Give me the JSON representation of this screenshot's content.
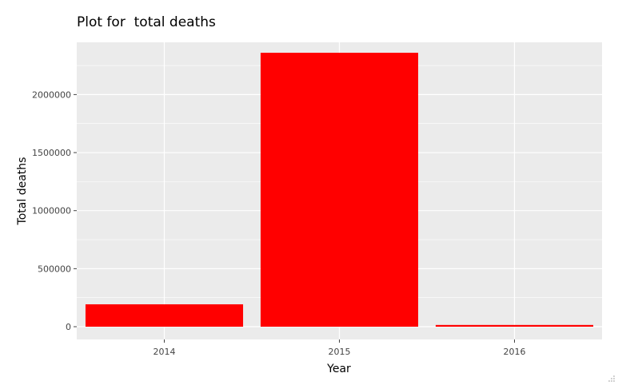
{
  "chart_data": {
    "type": "bar",
    "title": "Plot for  total deaths",
    "xlabel": "Year",
    "ylabel": "Total deaths",
    "categories": [
      "2014",
      "2015",
      "2016"
    ],
    "values": [
      193000,
      2360000,
      15000
    ],
    "ylim": [
      -110000,
      2450000
    ],
    "yticks": [
      0,
      500000,
      1000000,
      1500000,
      2000000
    ],
    "ytick_labels": [
      "0",
      "500000",
      "1000000",
      "1500000",
      "2000000"
    ],
    "grid": true,
    "legend": "none",
    "colors": {
      "bar": "#ff0000",
      "panel_background": "#ebebeb",
      "grid": "#ffffff",
      "text": "#444444"
    }
  }
}
